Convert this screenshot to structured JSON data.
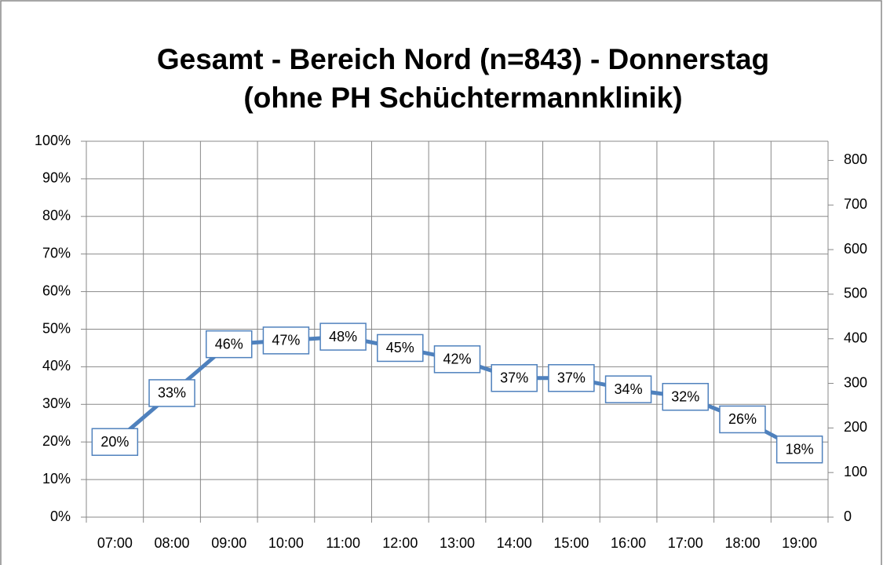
{
  "chart_data": {
    "type": "line",
    "title": [
      "Gesamt - Bereich Nord (n=843) - Donnerstag",
      "(ohne PH Schüchtermannklinik)"
    ],
    "categories": [
      "07:00",
      "08:00",
      "09:00",
      "10:00",
      "11:00",
      "12:00",
      "13:00",
      "14:00",
      "15:00",
      "16:00",
      "17:00",
      "18:00",
      "19:00"
    ],
    "series": [
      {
        "color": "#4f81bd",
        "values": [
          20,
          33,
          46,
          47,
          48,
          45,
          42,
          37,
          37,
          34,
          32,
          26,
          18
        ],
        "value_labels": [
          "20%",
          "33%",
          "46%",
          "47%",
          "48%",
          "45%",
          "42%",
          "37%",
          "37%",
          "34%",
          "32%",
          "26%",
          "18%"
        ]
      }
    ],
    "ylim": [
      0,
      100
    ],
    "yticks": [
      {
        "value": 0,
        "label": "0%"
      },
      {
        "value": 10,
        "label": "10%"
      },
      {
        "value": 20,
        "label": "20%"
      },
      {
        "value": 30,
        "label": "30%"
      },
      {
        "value": 40,
        "label": "40%"
      },
      {
        "value": 50,
        "label": "50%"
      },
      {
        "value": 60,
        "label": "60%"
      },
      {
        "value": 70,
        "label": "70%"
      },
      {
        "value": 80,
        "label": "80%"
      },
      {
        "value": 90,
        "label": "90%"
      },
      {
        "value": 100,
        "label": "100%"
      }
    ],
    "y2lim": [
      0,
      843
    ],
    "y2ticks": [
      0,
      100,
      200,
      300,
      400,
      500,
      600,
      700,
      800
    ],
    "grid": true
  }
}
